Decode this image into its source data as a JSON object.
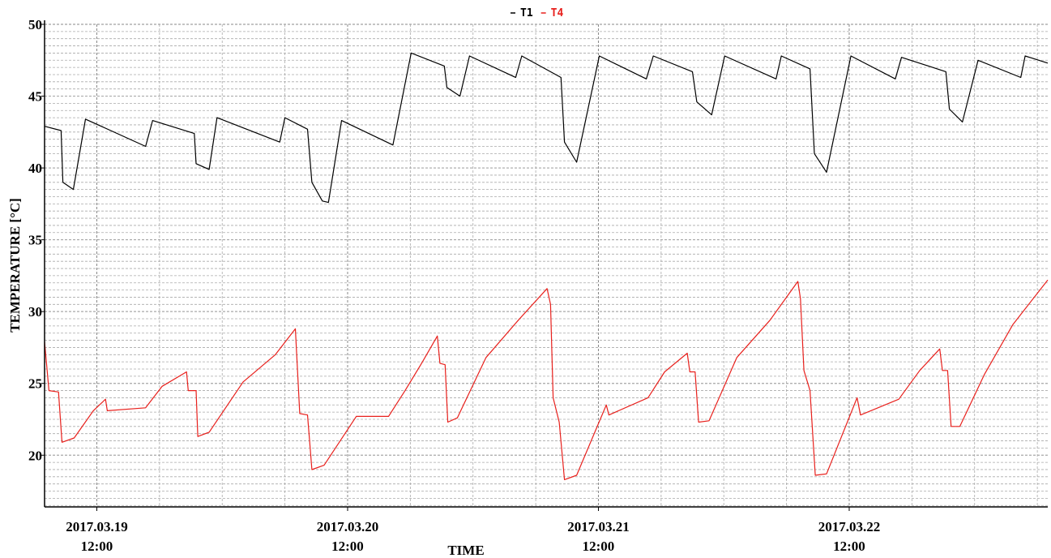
{
  "chart_data": {
    "type": "line",
    "xlabel": "TIME",
    "ylabel": "TEMPERATURE [°C]",
    "xlim": [
      "2017.03.19 07:00",
      "2017.03.23 07:00"
    ],
    "xticks": [
      {
        "value": "2017.03.19 12:00",
        "label": [
          "2017.03.19",
          "12:00"
        ]
      },
      {
        "value": "2017.03.20 12:00",
        "label": [
          "2017.03.20",
          "12:00"
        ]
      },
      {
        "value": "2017.03.21 12:00",
        "label": [
          "2017.03.21",
          "12:00"
        ]
      },
      {
        "value": "2017.03.22 12:00",
        "label": [
          "2017.03.22",
          "12:00"
        ]
      }
    ],
    "ylim": [
      16.4,
      50
    ],
    "yticks": [
      20,
      25,
      30,
      35,
      40,
      45,
      50
    ],
    "grid": true,
    "legend": "top",
    "series": [
      {
        "name": "T1",
        "color": "#000000",
        "x": [
          "2017.03.19 07:00",
          "2017.03.19 08:35",
          "2017.03.19 08:45",
          "2017.03.19 09:45",
          "2017.03.19 10:55",
          "2017.03.19 16:40",
          "2017.03.19 17:20",
          "2017.03.19 21:20",
          "2017.03.19 21:30",
          "2017.03.19 22:45",
          "2017.03.19 23:30",
          "2017.03.20 05:30",
          "2017.03.20 06:00",
          "2017.03.20 08:10",
          "2017.03.20 08:35",
          "2017.03.20 09:35",
          "2017.03.20 10:10",
          "2017.03.20 11:25",
          "2017.03.20 16:20",
          "2017.03.20 18:05",
          "2017.03.20 21:15",
          "2017.03.20 21:30",
          "2017.03.20 22:45",
          "2017.03.20 23:40",
          "2017.03.21 04:05",
          "2017.03.21 04:40",
          "2017.03.21 08:25",
          "2017.03.21 08:45",
          "2017.03.21 09:55",
          "2017.03.21 12:05",
          "2017.03.21 16:35",
          "2017.03.21 17:15",
          "2017.03.21 21:00",
          "2017.03.21 21:25",
          "2017.03.21 22:50",
          "2017.03.22 00:05",
          "2017.03.22 05:00",
          "2017.03.22 05:30",
          "2017.03.22 08:15",
          "2017.03.22 08:40",
          "2017.03.22 09:50",
          "2017.03.22 12:10",
          "2017.03.22 16:25",
          "2017.03.22 17:00",
          "2017.03.22 21:15",
          "2017.03.22 21:35",
          "2017.03.22 22:50",
          "2017.03.23 00:20",
          "2017.03.23 04:25",
          "2017.03.23 04:50",
          "2017.03.23 07:00"
        ],
        "values": [
          42.9,
          42.6,
          39.0,
          38.5,
          43.4,
          41.5,
          43.3,
          42.4,
          40.3,
          39.9,
          43.5,
          41.8,
          43.5,
          42.7,
          39.0,
          37.7,
          37.6,
          43.3,
          41.6,
          48.0,
          47.1,
          45.6,
          45.0,
          47.8,
          46.3,
          47.8,
          46.3,
          41.8,
          40.4,
          47.8,
          46.2,
          47.8,
          46.7,
          44.6,
          43.7,
          47.8,
          46.2,
          47.8,
          46.9,
          41.0,
          39.7,
          47.8,
          46.2,
          47.7,
          46.7,
          44.1,
          43.2,
          47.5,
          46.3,
          47.8,
          47.3
        ]
      },
      {
        "name": "T4",
        "color": "#e8201c",
        "x": [
          "2017.03.19 07:00",
          "2017.03.19 07:25",
          "2017.03.19 08:20",
          "2017.03.19 08:40",
          "2017.03.19 09:50",
          "2017.03.19 11:40",
          "2017.03.19 12:50",
          "2017.03.19 13:00",
          "2017.03.19 16:40",
          "2017.03.19 18:15",
          "2017.03.19 20:35",
          "2017.03.19 20:45",
          "2017.03.19 21:30",
          "2017.03.19 21:40",
          "2017.03.19 22:45",
          "2017.03.20 02:00",
          "2017.03.20 05:05",
          "2017.03.20 07:00",
          "2017.03.20 07:25",
          "2017.03.20 08:10",
          "2017.03.20 08:35",
          "2017.03.20 09:45",
          "2017.03.20 12:50",
          "2017.03.20 15:55",
          "2017.03.20 17:30",
          "2017.03.20 19:05",
          "2017.03.20 20:35",
          "2017.03.20 20:50",
          "2017.03.20 21:20",
          "2017.03.20 21:35",
          "2017.03.20 22:30",
          "2017.03.21 01:15",
          "2017.03.21 04:20",
          "2017.03.21 07:05",
          "2017.03.21 07:25",
          "2017.03.21 07:40",
          "2017.03.21 08:15",
          "2017.03.21 08:45",
          "2017.03.21 09:55",
          "2017.03.21 12:45",
          "2017.03.21 13:00",
          "2017.03.21 16:45",
          "2017.03.21 18:20",
          "2017.03.21 20:30",
          "2017.03.21 20:45",
          "2017.03.21 21:15",
          "2017.03.21 21:35",
          "2017.03.21 22:35",
          "2017.03.22 01:15",
          "2017.03.22 04:25",
          "2017.03.22 07:05",
          "2017.03.22 07:20",
          "2017.03.22 07:40",
          "2017.03.22 08:15",
          "2017.03.22 08:45",
          "2017.03.22 09:50",
          "2017.03.22 12:45",
          "2017.03.22 13:05",
          "2017.03.22 16:45",
          "2017.03.22 18:45",
          "2017.03.22 20:40",
          "2017.03.22 20:55",
          "2017.03.22 21:25",
          "2017.03.22 21:45",
          "2017.03.22 22:35",
          "2017.03.23 00:55",
          "2017.03.23 03:40",
          "2017.03.23 07:00"
        ],
        "values": [
          27.9,
          24.5,
          24.4,
          20.9,
          21.2,
          23.1,
          23.9,
          23.1,
          23.3,
          24.8,
          25.8,
          24.5,
          24.5,
          21.3,
          21.6,
          25.1,
          27.0,
          28.8,
          22.9,
          22.8,
          19.0,
          19.3,
          22.7,
          22.7,
          24.5,
          26.4,
          28.3,
          26.4,
          26.3,
          22.3,
          22.6,
          26.8,
          29.4,
          31.6,
          30.5,
          24.0,
          22.3,
          18.3,
          18.6,
          23.5,
          22.8,
          24.0,
          25.8,
          27.1,
          25.8,
          25.8,
          22.3,
          22.4,
          26.8,
          29.4,
          32.1,
          30.9,
          25.9,
          24.5,
          18.6,
          18.7,
          24.0,
          22.8,
          23.9,
          25.9,
          27.4,
          25.9,
          25.9,
          22.0,
          22.0,
          25.6,
          29.1,
          32.2
        ]
      }
    ]
  }
}
